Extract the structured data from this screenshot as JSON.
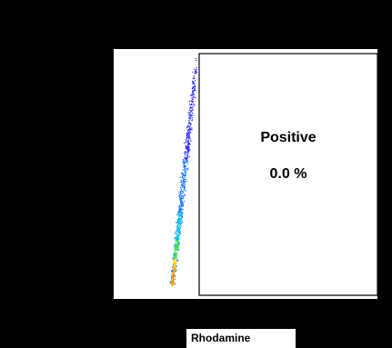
{
  "chart_data": {
    "type": "scatter",
    "plot_style": "density-dot-plot",
    "x_axis_label": "Rhodamine",
    "gate": {
      "name": "Positive",
      "percent_label": "0.0 %",
      "percent": 0.0
    },
    "density_colors": [
      "#1a1aff",
      "#1e7bff",
      "#00c4e0",
      "#2ee34a",
      "#ffd000",
      "#ff7a00"
    ],
    "grid": false,
    "legend": "none"
  }
}
